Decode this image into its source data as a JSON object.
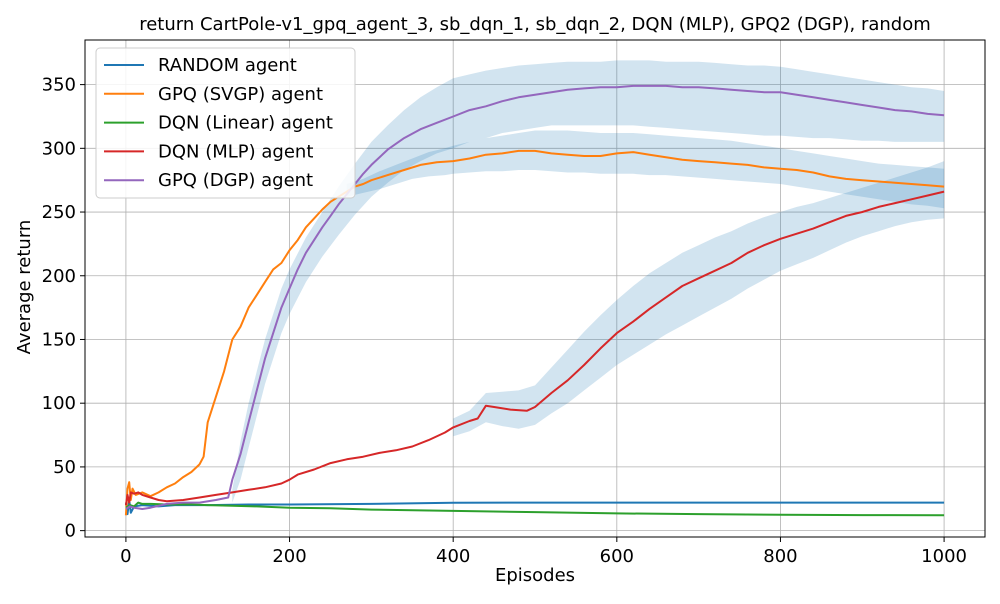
{
  "chart_data": {
    "type": "line",
    "title": "return CartPole-v1_gpq_agent_3, sb_dqn_1, sb_dqn_2, DQN (MLP), GPQ2 (DGP), random",
    "xlabel": "Episodes",
    "ylabel": "Average return",
    "xlim": [
      -50,
      1050
    ],
    "ylim": [
      -5,
      385
    ],
    "xticks": [
      0,
      200,
      400,
      600,
      800,
      1000
    ],
    "yticks": [
      0,
      50,
      100,
      150,
      200,
      250,
      300,
      350
    ],
    "grid": true,
    "legend_position": "top-left",
    "band_color": "#1f77b4",
    "series": [
      {
        "name": "RANDOM agent",
        "color": "#1f77b4",
        "x": [
          0,
          2,
          4,
          6,
          10,
          20,
          40,
          60,
          100,
          150,
          200,
          300,
          400,
          500,
          600,
          700,
          800,
          900,
          1000
        ],
        "y": [
          22,
          13,
          24,
          14,
          19,
          20,
          19,
          20,
          20,
          20.5,
          20.5,
          21,
          21.8,
          22,
          22,
          22,
          22,
          22,
          22
        ]
      },
      {
        "name": "GPQ (SVGP) agent",
        "color": "#ff7f0e",
        "x": [
          0,
          2,
          4,
          6,
          8,
          12,
          20,
          30,
          40,
          50,
          60,
          70,
          80,
          90,
          95,
          100,
          110,
          120,
          130,
          140,
          150,
          160,
          170,
          180,
          190,
          200,
          210,
          220,
          230,
          240,
          250,
          260,
          270,
          280,
          290,
          300,
          320,
          340,
          360,
          380,
          400,
          420,
          440,
          460,
          480,
          500,
          520,
          540,
          560,
          580,
          600,
          620,
          640,
          660,
          680,
          700,
          720,
          740,
          760,
          780,
          800,
          820,
          840,
          860,
          880,
          900,
          920,
          940,
          960,
          980,
          1000
        ],
        "y": [
          12,
          33,
          38,
          24,
          33,
          28,
          30,
          27,
          30,
          34,
          37,
          42,
          46,
          52,
          58,
          85,
          105,
          125,
          150,
          160,
          175,
          185,
          195,
          205,
          210,
          220,
          228,
          238,
          245,
          252,
          258,
          262,
          266,
          270,
          272,
          275,
          279,
          283,
          287,
          289,
          290,
          292,
          295,
          296,
          298,
          298,
          296,
          295,
          294,
          294,
          296,
          297,
          295,
          293,
          291,
          290,
          289,
          288,
          287,
          285,
          284,
          283,
          281,
          278,
          276,
          275,
          274,
          273,
          272,
          271,
          270
        ]
      },
      {
        "name": "DQN (Linear) agent",
        "color": "#2ca02c",
        "x": [
          0,
          5,
          10,
          15,
          20,
          30,
          50,
          80,
          100,
          130,
          160,
          200,
          250,
          300,
          400,
          500,
          600,
          700,
          800,
          900,
          1000
        ],
        "y": [
          18,
          20,
          19,
          22,
          21,
          21,
          20.5,
          20.5,
          20,
          19.5,
          19,
          18,
          17.5,
          16.5,
          15.5,
          14.5,
          13.5,
          13,
          12.5,
          12.2,
          12
        ]
      },
      {
        "name": "DQN (MLP) agent",
        "color": "#d62728",
        "x": [
          0,
          2,
          4,
          6,
          10,
          15,
          20,
          30,
          40,
          50,
          70,
          90,
          110,
          130,
          150,
          170,
          190,
          200,
          210,
          230,
          250,
          270,
          290,
          310,
          330,
          350,
          370,
          390,
          400,
          420,
          430,
          440,
          450,
          470,
          490,
          500,
          520,
          540,
          560,
          580,
          600,
          620,
          640,
          660,
          680,
          700,
          720,
          740,
          760,
          780,
          800,
          820,
          840,
          860,
          880,
          900,
          920,
          940,
          960,
          980,
          1000
        ],
        "y": [
          20,
          28,
          22,
          30,
          29,
          30,
          28,
          26,
          24,
          23,
          24,
          26,
          28,
          30,
          32,
          34,
          37,
          40,
          44,
          48,
          53,
          56,
          58,
          61,
          63,
          66,
          71,
          77,
          81,
          86,
          88,
          98,
          97,
          95,
          94,
          97,
          108,
          118,
          130,
          143,
          155,
          164,
          174,
          183,
          192,
          198,
          204,
          210,
          218,
          224,
          229,
          233,
          237,
          242,
          247,
          250,
          254,
          257,
          260,
          263,
          266
        ]
      },
      {
        "name": "GPQ (DGP) agent",
        "color": "#9467bd",
        "x": [
          0,
          5,
          10,
          20,
          30,
          50,
          70,
          90,
          110,
          125,
          130,
          140,
          150,
          160,
          170,
          180,
          190,
          200,
          210,
          220,
          230,
          240,
          250,
          260,
          270,
          280,
          290,
          300,
          320,
          340,
          360,
          380,
          400,
          420,
          440,
          460,
          480,
          500,
          520,
          540,
          560,
          580,
          600,
          620,
          640,
          660,
          680,
          700,
          720,
          740,
          760,
          780,
          800,
          820,
          840,
          860,
          880,
          900,
          920,
          940,
          960,
          980,
          1000
        ],
        "y": [
          17,
          19,
          18,
          17,
          18,
          21,
          22,
          22,
          24,
          26,
          40,
          60,
          85,
          110,
          135,
          155,
          175,
          190,
          205,
          218,
          228,
          238,
          247,
          256,
          264,
          272,
          280,
          287,
          299,
          308,
          315,
          320,
          325,
          330,
          333,
          337,
          340,
          342,
          344,
          346,
          347,
          348,
          348,
          349,
          349,
          349,
          348,
          348,
          347,
          346,
          345,
          344,
          344,
          342,
          340,
          338,
          336,
          334,
          332,
          330,
          329,
          327,
          326
        ]
      }
    ],
    "bands": [
      {
        "x": [
          130,
          140,
          150,
          160,
          170,
          180,
          190,
          200,
          220,
          240,
          260,
          280,
          300,
          320,
          340,
          360,
          380,
          400,
          420,
          440,
          460,
          480,
          500,
          520,
          540,
          560,
          580,
          600,
          620,
          640,
          660,
          680,
          700,
          720,
          740,
          760,
          780,
          800,
          820,
          840,
          860,
          880,
          900,
          920,
          940,
          960,
          980,
          1000
        ],
        "lower": [
          22,
          40,
          65,
          90,
          115,
          135,
          155,
          170,
          195,
          215,
          232,
          248,
          262,
          273,
          283,
          290,
          296,
          300,
          305,
          308,
          312,
          314,
          316,
          318,
          318,
          318,
          318,
          318,
          318,
          317,
          316,
          315,
          314,
          313,
          312,
          311,
          310,
          310,
          309,
          308,
          308,
          307,
          306,
          306,
          305,
          305,
          305,
          305
        ],
        "upper": [
          32,
          70,
          100,
          125,
          150,
          170,
          190,
          205,
          230,
          250,
          270,
          288,
          305,
          318,
          330,
          340,
          348,
          355,
          358,
          361,
          363,
          365,
          366,
          367,
          368,
          368,
          368,
          369,
          369,
          369,
          368,
          368,
          368,
          367,
          366,
          365,
          365,
          364,
          362,
          360,
          358,
          356,
          354,
          352,
          350,
          348,
          347,
          345
        ]
      },
      {
        "x": [
          270,
          290,
          310,
          330,
          350,
          370,
          390,
          400,
          420,
          440,
          460,
          480,
          500,
          520,
          540,
          560,
          580,
          600,
          620,
          640,
          660,
          680,
          700,
          720,
          740,
          760,
          780,
          800,
          820,
          840,
          860,
          880,
          900,
          920,
          940,
          960,
          980,
          1000
        ],
        "lower": [
          262,
          265,
          268,
          272,
          276,
          278,
          279,
          280,
          281,
          282,
          282,
          283,
          283,
          282,
          281,
          281,
          280,
          280,
          280,
          279,
          279,
          278,
          277,
          276,
          275,
          274,
          273,
          272,
          270,
          268,
          266,
          264,
          262,
          260,
          258,
          256,
          255,
          253
        ],
        "upper": [
          272,
          276,
          282,
          287,
          292,
          297,
          300,
          302,
          305,
          308,
          310,
          312,
          314,
          314,
          314,
          313,
          312,
          312,
          312,
          311,
          310,
          309,
          308,
          307,
          306,
          304,
          302,
          300,
          298,
          296,
          294,
          292,
          290,
          288,
          287,
          286,
          285,
          284
        ]
      },
      {
        "x": [
          400,
          420,
          440,
          460,
          480,
          500,
          520,
          540,
          560,
          580,
          600,
          620,
          640,
          660,
          680,
          700,
          720,
          740,
          760,
          780,
          800,
          820,
          840,
          860,
          880,
          900,
          920,
          940,
          960,
          980,
          1000
        ],
        "lower": [
          74,
          78,
          85,
          82,
          80,
          83,
          92,
          100,
          110,
          120,
          130,
          138,
          146,
          154,
          161,
          168,
          175,
          182,
          190,
          197,
          204,
          209,
          214,
          220,
          226,
          231,
          235,
          239,
          242,
          244,
          245
        ],
        "upper": [
          88,
          94,
          108,
          109,
          110,
          114,
          128,
          142,
          156,
          169,
          181,
          192,
          202,
          210,
          218,
          224,
          230,
          235,
          241,
          246,
          250,
          254,
          257,
          261,
          265,
          269,
          273,
          277,
          281,
          285,
          290
        ]
      }
    ]
  }
}
